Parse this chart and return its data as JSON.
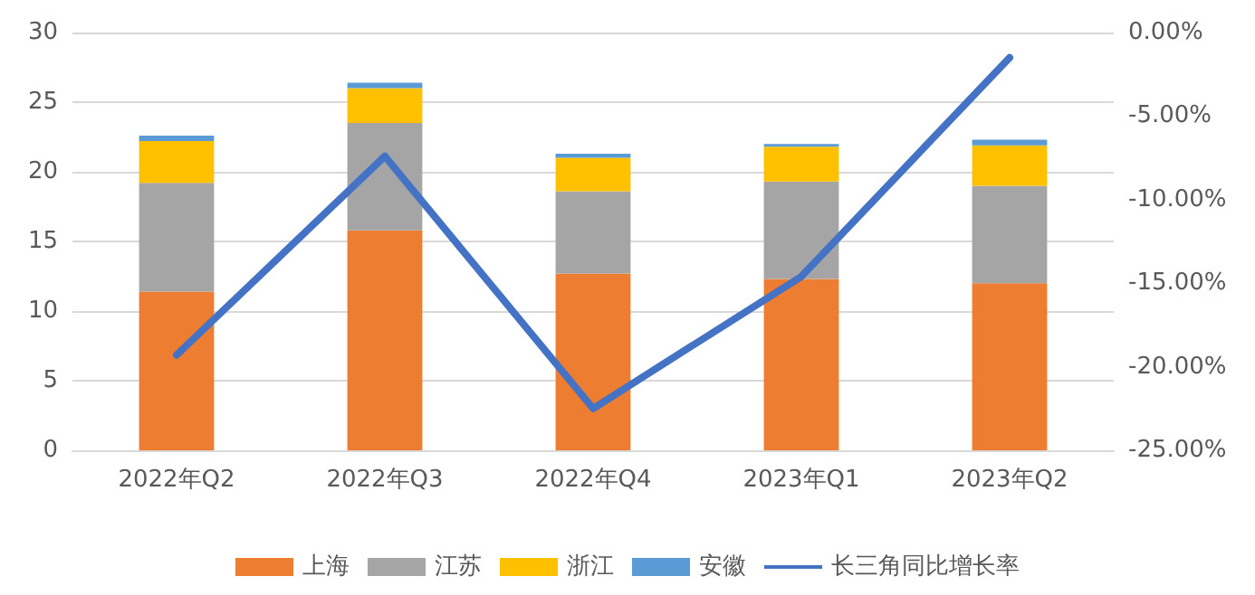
{
  "chart_data": {
    "type": "bar",
    "stacked": true,
    "categories": [
      "2022年Q2",
      "2022年Q3",
      "2022年Q4",
      "2023年Q1",
      "2023年Q2"
    ],
    "series": [
      {
        "name": "上海",
        "color": "#ed7d31",
        "values": [
          11.4,
          15.8,
          12.7,
          12.3,
          12.0
        ]
      },
      {
        "name": "江苏",
        "color": "#a5a5a5",
        "values": [
          7.8,
          7.7,
          5.9,
          7.0,
          7.0
        ]
      },
      {
        "name": "浙江",
        "color": "#ffc000",
        "values": [
          3.0,
          2.5,
          2.4,
          2.5,
          2.9
        ]
      },
      {
        "name": "安徽",
        "color": "#5b9bd5",
        "values": [
          0.4,
          0.4,
          0.3,
          0.2,
          0.4
        ]
      },
      {
        "name": "长三角同比增长率",
        "type": "line",
        "axis": "y2",
        "color": "#4472c4",
        "values": [
          -19.3,
          -7.4,
          -22.5,
          -14.6,
          -1.5
        ]
      }
    ],
    "ylim": [
      0,
      30
    ],
    "yticks": [
      0,
      5,
      10,
      15,
      20,
      25,
      30
    ],
    "y2lim": [
      -25,
      0
    ],
    "y2ticks": [
      {
        "value": -25,
        "label": "-25.00%"
      },
      {
        "value": -20,
        "label": "-20.00%"
      },
      {
        "value": -15,
        "label": "-15.00%"
      },
      {
        "value": -10,
        "label": "-10.00%"
      },
      {
        "value": -5,
        "label": "-5.00%"
      },
      {
        "value": 0,
        "label": "0.00%"
      }
    ],
    "grid": "y",
    "legend": "bottom",
    "marker": "none",
    "line_style": "solid"
  }
}
